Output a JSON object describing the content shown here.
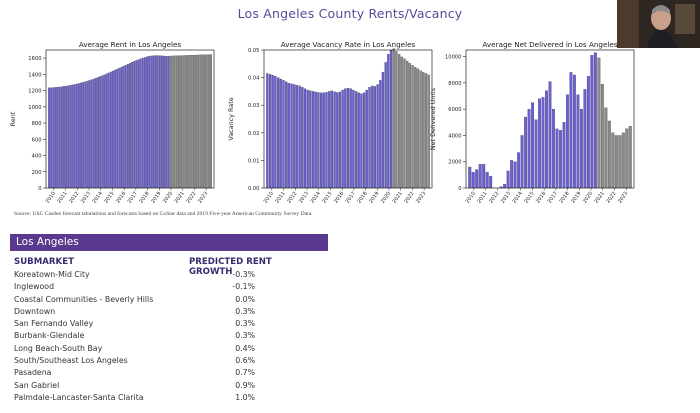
{
  "slide_title": "Los Angeles County Rents/Vacancy",
  "source_note": "Source: USC Casden forecast tabulations and forecasts based on CoStar data and 2019 Five-year American Community Survey Data.",
  "section_header": "Los Angeles",
  "table": {
    "headers": [
      "SUBMARKET",
      "PREDICTED RENT GROWTH"
    ],
    "rows": [
      [
        "Koreatown-Mid City",
        "-0.3%"
      ],
      [
        "Inglewood",
        "-0.1%"
      ],
      [
        "Coastal Communities - Beverly Hills",
        "0.0%"
      ],
      [
        "Downtown",
        "0.3%"
      ],
      [
        "San Fernando Valley",
        "0.3%"
      ],
      [
        "Burbank-Glendale",
        "0.3%"
      ],
      [
        "Long Beach-South Bay",
        "0.4%"
      ],
      [
        "South/Southeast Los Angeles",
        "0.6%"
      ],
      [
        "Pasadena",
        "0.7%"
      ],
      [
        "San Gabriel",
        "0.9%"
      ],
      [
        "Palmdale-Lancaster-Santa Clarita",
        "1.0%"
      ]
    ]
  },
  "colors": {
    "historical": "#6a5fd6",
    "forecast": "#8a8a8a",
    "header_bg": "#5a3a8e",
    "title": "#5a4a9a"
  },
  "chart_data": [
    {
      "type": "bar",
      "title": "Average Rent in Los Angeles",
      "ylabel": "Rent",
      "xlabel": "",
      "ylim": [
        0,
        1700
      ],
      "yticks": [
        0,
        200,
        400,
        600,
        800,
        1000,
        1200,
        1400,
        1600
      ],
      "xtick_labels": [
        "2010",
        "2011",
        "2012",
        "2013",
        "2014",
        "2015",
        "2016",
        "2017",
        "2018",
        "2019",
        "2020",
        "2021",
        "2022",
        "2023"
      ],
      "grid": false,
      "series": [
        {
          "name": "",
          "color": "#6a5fd6",
          "values": [
            1235,
            1236,
            1238,
            1240,
            1242,
            1245,
            1248,
            1252,
            1256,
            1260,
            1265,
            1270,
            1276,
            1282,
            1288,
            1295,
            1302,
            1310,
            1318,
            1326,
            1335,
            1344,
            1354,
            1364,
            1374,
            1385,
            1396,
            1407,
            1418,
            1430,
            1442,
            1454,
            1466,
            1478,
            1490,
            1502,
            1514,
            1526,
            1538,
            1550,
            1561,
            1572,
            1582,
            1592,
            1601,
            1609,
            1616,
            1622,
            1627,
            1630,
            1632,
            1632,
            1630,
            1628,
            1626,
            1625,
            1625
          ]
        },
        {
          "name": "",
          "color": "#8a8a8a",
          "values": [
            1626,
            1627,
            1628,
            1629,
            1630,
            1631,
            1632,
            1633,
            1634,
            1635,
            1636,
            1637,
            1638,
            1639,
            1640,
            1641,
            1642,
            1643,
            1644,
            1645
          ]
        }
      ]
    },
    {
      "type": "bar",
      "title": "Average Vacancy Rate in Los Angeles",
      "ylabel": "Vacancy Rate",
      "xlabel": "",
      "ylim": [
        0,
        0.05
      ],
      "yticks": [
        0.0,
        0.01,
        0.02,
        0.03,
        0.04,
        0.05
      ],
      "xtick_labels": [
        "2010",
        "2011",
        "2012",
        "2013",
        "2014",
        "2015",
        "2016",
        "2017",
        "2018",
        "2019",
        "2020",
        "2021",
        "2022",
        "2023"
      ],
      "grid": false,
      "series": [
        {
          "name": "",
          "color": "#6a5fd6",
          "values": [
            0.0415,
            0.0412,
            0.0409,
            0.0405,
            0.04,
            0.0395,
            0.039,
            0.0385,
            0.038,
            0.0378,
            0.0375,
            0.0372,
            0.037,
            0.0365,
            0.036,
            0.0355,
            0.0352,
            0.035,
            0.0348,
            0.0346,
            0.0345,
            0.0345,
            0.0347,
            0.035,
            0.0352,
            0.0349,
            0.0346,
            0.0348,
            0.0355,
            0.036,
            0.0362,
            0.036,
            0.0355,
            0.035,
            0.0345,
            0.0342,
            0.0345,
            0.0355,
            0.0365,
            0.037,
            0.0368,
            0.0375,
            0.039,
            0.042,
            0.0455,
            0.0485,
            0.05
          ]
        },
        {
          "name": "",
          "color": "#8a8a8a",
          "values": [
            0.0505,
            0.0495,
            0.0485,
            0.0475,
            0.0468,
            0.046,
            0.0452,
            0.0445,
            0.0438,
            0.0432,
            0.0425,
            0.042,
            0.0415,
            0.041
          ]
        }
      ]
    },
    {
      "type": "bar",
      "title": "Average Net Delivered in Los Angeles",
      "ylabel": "Net Delivered Units",
      "xlabel": "",
      "ylim": [
        0,
        10500
      ],
      "yticks": [
        0,
        2000,
        4000,
        6000,
        8000,
        10000
      ],
      "xtick_labels": [
        "2010",
        "2011",
        "2012",
        "2013",
        "2014",
        "2015",
        "2016",
        "2017",
        "2018",
        "2019",
        "2020",
        "2021",
        "2022",
        "2023"
      ],
      "grid": false,
      "series": [
        {
          "name": "",
          "color": "#6a5fd6",
          "values": [
            1600,
            1200,
            1400,
            1800,
            1800,
            1200,
            900,
            0,
            0,
            100,
            300,
            1300,
            2100,
            2000,
            2700,
            4000,
            5400,
            6000,
            6500,
            5200,
            6800,
            6900,
            7400,
            8100,
            6000,
            4500,
            4400,
            5000,
            7100,
            8800,
            8600,
            7100,
            6000,
            7500,
            8500,
            10100,
            10300
          ]
        },
        {
          "name": "",
          "color": "#8a8a8a",
          "values": [
            9900,
            7900,
            6100,
            5100,
            4200,
            4000,
            4000,
            4200,
            4500,
            4700
          ]
        }
      ]
    }
  ]
}
